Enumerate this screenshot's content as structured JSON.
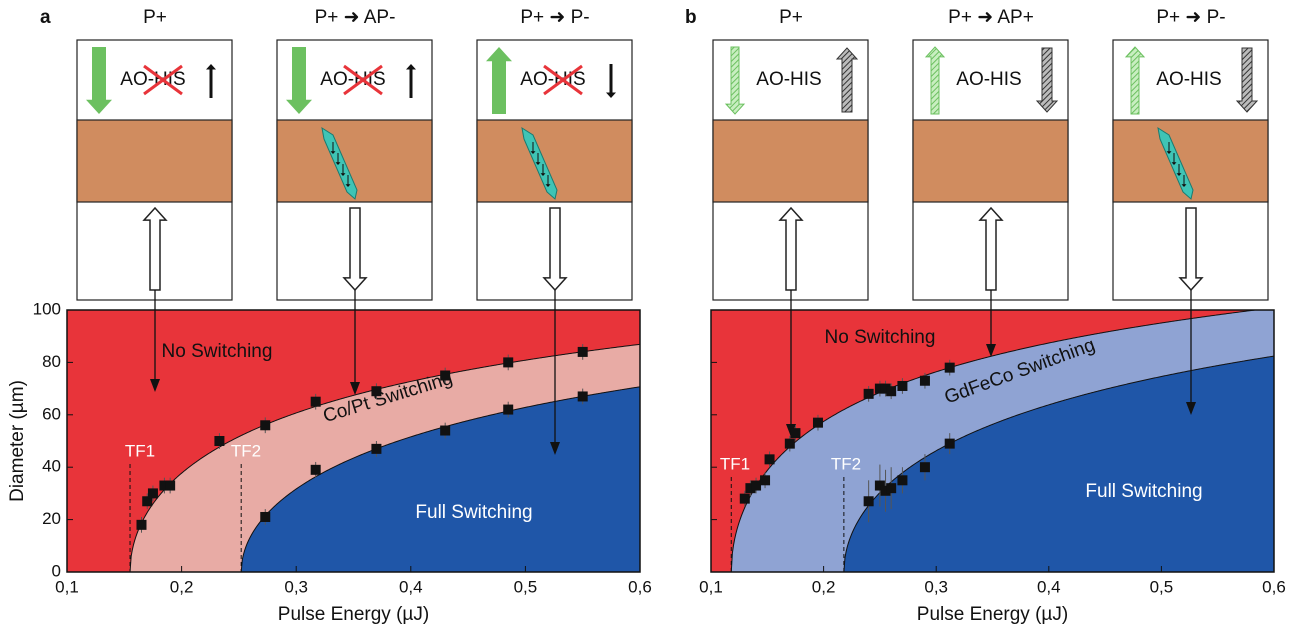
{
  "chart_data": [
    {
      "type": "scatter",
      "panel": "a",
      "xlabel": "Pulse Energy (µJ)",
      "ylabel": "Diameter (µm)",
      "xlim": [
        0.1,
        0.6
      ],
      "ylim": [
        0,
        100
      ],
      "xticks": [
        {
          "value": 0.1,
          "label": "0,1"
        },
        {
          "value": 0.2,
          "label": "0,2"
        },
        {
          "value": 0.3,
          "label": "0,3"
        },
        {
          "value": 0.4,
          "label": "0,4"
        },
        {
          "value": 0.5,
          "label": "0,5"
        },
        {
          "value": 0.6,
          "label": "0,6"
        }
      ],
      "yticks": [
        0,
        20,
        40,
        60,
        80,
        100
      ],
      "ytick_labels": true,
      "regions": [
        {
          "name": "No Switching",
          "color": "#e8343a"
        },
        {
          "name": "Co/Pt Switching",
          "color": "#e8aba5",
          "onset": {
            "label": "TF1",
            "value": 0.155
          },
          "width": 74.7
        },
        {
          "name": "Full Switching",
          "color": "#1f56a8",
          "onset": {
            "label": "TF2",
            "value": 0.252
          },
          "width": 75.9
        }
      ],
      "series": [
        {
          "color": "#111111",
          "x": [
            0.165,
            0.17,
            0.175,
            0.185,
            0.19,
            0.233,
            0.273,
            0.317,
            0.37,
            0.43,
            0.485,
            0.55
          ],
          "values": [
            18,
            27,
            30,
            33,
            33,
            50,
            56,
            65,
            69,
            75,
            80,
            84
          ],
          "errors": [
            3,
            3,
            3,
            3,
            3,
            3,
            3,
            3,
            3,
            3,
            3,
            3
          ]
        },
        {
          "color": "#111111",
          "x": [
            0.273,
            0.317,
            0.37,
            0.43,
            0.485,
            0.55
          ],
          "values": [
            21,
            39,
            47,
            54,
            62,
            67
          ],
          "errors": [
            3,
            3,
            3,
            3,
            3,
            3
          ]
        }
      ],
      "arrow_style": "solid",
      "crossed": true,
      "states": [
        {
          "title": "P+",
          "text": "AO-HIS",
          "left": "down",
          "right": "up",
          "domain": false,
          "beam": "up"
        },
        {
          "title": "P+ ➜ AP-",
          "text": "AO-HIS",
          "left": "down",
          "right": "up",
          "domain": true,
          "beam": "down"
        },
        {
          "title": "P+ ➜ P-",
          "text": "AO-HIS",
          "left": "up",
          "right": "down",
          "domain": true,
          "beam": "down"
        }
      ]
    },
    {
      "type": "scatter",
      "panel": "b",
      "xlabel": "Pulse Energy (µJ)",
      "xlim": [
        0.1,
        0.6
      ],
      "ylim": [
        0,
        100
      ],
      "xticks": [
        {
          "value": 0.1,
          "label": "0,1"
        },
        {
          "value": 0.2,
          "label": "0,2"
        },
        {
          "value": 0.3,
          "label": "0,3"
        },
        {
          "value": 0.4,
          "label": "0,4"
        },
        {
          "value": 0.5,
          "label": "0,5"
        },
        {
          "value": 0.6,
          "label": "0,6"
        }
      ],
      "yticks": [
        0,
        20,
        40,
        60,
        80,
        100
      ],
      "ytick_labels": false,
      "regions": [
        {
          "name": "No Switching",
          "color": "#e8343a"
        },
        {
          "name": "GdFeCo Switching",
          "color": "#8fa3d3",
          "onset": {
            "label": "TF1",
            "value": 0.118
          },
          "width": 79.1
        },
        {
          "name": "Full Switching",
          "color": "#1f56a8",
          "onset": {
            "label": "TF2",
            "value": 0.218
          },
          "width": 81.9
        }
      ],
      "series": [
        {
          "color": "#111111",
          "x": [
            0.13,
            0.135,
            0.14,
            0.148,
            0.152,
            0.17,
            0.175,
            0.195,
            0.24,
            0.25,
            0.255,
            0.26,
            0.27,
            0.29,
            0.312
          ],
          "values": [
            28,
            32,
            33,
            35,
            43,
            49,
            53,
            57,
            68,
            70,
            70,
            69,
            71,
            73,
            78
          ],
          "errors": [
            3,
            3,
            3,
            3,
            3,
            3,
            3,
            3,
            3,
            3,
            3,
            3,
            3,
            3,
            3
          ]
        },
        {
          "color": "#111111",
          "x": [
            0.24,
            0.25,
            0.255,
            0.26,
            0.27,
            0.29,
            0.312
          ],
          "values": [
            27,
            33,
            31,
            32,
            35,
            40,
            49
          ],
          "errors": [
            8,
            8,
            8,
            8,
            5,
            5,
            4
          ]
        }
      ],
      "arrow_style": "hatched",
      "crossed": false,
      "states": [
        {
          "title": "P+",
          "text": "AO-HIS",
          "left": "down",
          "right": "up",
          "domain": false,
          "beam": "up"
        },
        {
          "title": "P+ ➜ AP+",
          "text": "AO-HIS",
          "left": "up",
          "right": "down",
          "domain": false,
          "beam": "up"
        },
        {
          "title": "P+ ➜ P-",
          "text": "AO-HIS",
          "left": "up",
          "right": "down",
          "domain": true,
          "beam": "down"
        }
      ]
    }
  ]
}
